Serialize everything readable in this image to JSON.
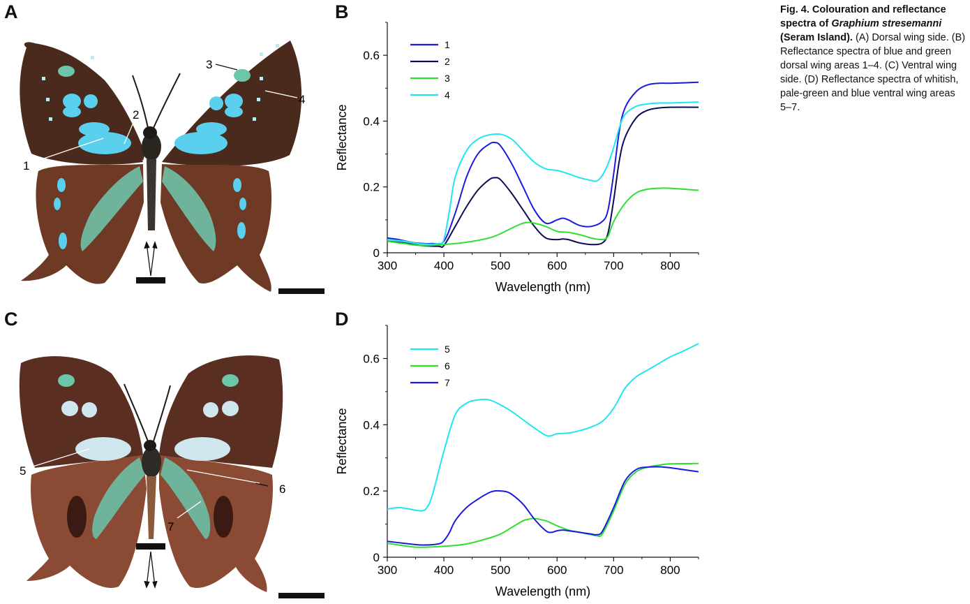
{
  "panels": {
    "A": "A",
    "B": "B",
    "C": "C",
    "D": "D"
  },
  "caption": {
    "bold_lead": "Fig. 4. Colouration and reflectance spectra of ",
    "species": "Graphium stresemanni",
    "bold_tail": " (Seram Island).",
    "text": " (A) Dorsal wing side. (B) Reflectance spectra of blue and green dorsal wing areas 1–4. (C) Ventral wing side. (D) Reflectance spectra of whitish, pale-green and blue ventral wing areas 5–7."
  },
  "photo_labels": {
    "A": [
      "1",
      "2",
      "3",
      "4"
    ],
    "C": [
      "5",
      "6",
      "7"
    ]
  },
  "colors": {
    "s1": "#1a1adf",
    "s2": "#0b0b57",
    "s3": "#2ee02e",
    "s4": "#1fe6f0",
    "s5": "#1fe6f0",
    "s6": "#2ee02e",
    "s7": "#1a1adf",
    "wing_brown": "#4a2a1c",
    "wing_tail": "#8a4a33",
    "wing_blue": "#5ad0ee",
    "wing_green": "#6fb49a",
    "wing_white": "#cfe6ee"
  },
  "chart_data": [
    {
      "type": "line",
      "panel": "B",
      "xlabel": "Wavelength (nm)",
      "ylabel": "Reflectance",
      "xlim": [
        300,
        850
      ],
      "ylim": [
        0,
        0.7
      ],
      "xticks": [
        300,
        400,
        500,
        600,
        700,
        800
      ],
      "yticks": [
        0,
        0.2,
        0.4,
        0.6
      ],
      "ytick_labels": [
        "0",
        "0.2",
        "0.4",
        "0.6"
      ],
      "legend_position": "top-left",
      "series": [
        {
          "name": "1",
          "color": "#1a1adf",
          "x": [
            300,
            320,
            350,
            380,
            400,
            420,
            440,
            460,
            480,
            490,
            500,
            520,
            540,
            560,
            580,
            600,
            610,
            620,
            640,
            660,
            680,
            690,
            700,
            710,
            720,
            740,
            760,
            780,
            800,
            850
          ],
          "y": [
            0.045,
            0.04,
            0.03,
            0.028,
            0.035,
            0.12,
            0.23,
            0.3,
            0.33,
            0.335,
            0.325,
            0.27,
            0.2,
            0.13,
            0.09,
            0.1,
            0.105,
            0.1,
            0.083,
            0.08,
            0.095,
            0.13,
            0.24,
            0.37,
            0.44,
            0.49,
            0.51,
            0.515,
            0.515,
            0.518
          ]
        },
        {
          "name": "2",
          "color": "#0b0b57",
          "x": [
            300,
            330,
            360,
            390,
            400,
            420,
            440,
            460,
            480,
            490,
            500,
            520,
            540,
            560,
            580,
            600,
            610,
            620,
            640,
            660,
            680,
            690,
            700,
            710,
            720,
            740,
            760,
            780,
            800,
            850
          ],
          "y": [
            0.035,
            0.03,
            0.022,
            0.02,
            0.022,
            0.08,
            0.14,
            0.19,
            0.222,
            0.228,
            0.222,
            0.18,
            0.13,
            0.08,
            0.045,
            0.04,
            0.042,
            0.04,
            0.03,
            0.025,
            0.03,
            0.06,
            0.16,
            0.28,
            0.35,
            0.41,
            0.433,
            0.44,
            0.442,
            0.442
          ]
        },
        {
          "name": "3",
          "color": "#2ee02e",
          "x": [
            300,
            330,
            360,
            400,
            440,
            480,
            500,
            520,
            540,
            550,
            560,
            580,
            600,
            620,
            640,
            660,
            680,
            690,
            700,
            720,
            740,
            760,
            780,
            800,
            850
          ],
          "y": [
            0.035,
            0.028,
            0.022,
            0.025,
            0.032,
            0.045,
            0.058,
            0.075,
            0.09,
            0.092,
            0.09,
            0.08,
            0.065,
            0.062,
            0.055,
            0.045,
            0.04,
            0.05,
            0.095,
            0.15,
            0.182,
            0.193,
            0.196,
            0.196,
            0.19
          ]
        },
        {
          "name": "4",
          "color": "#1fe6f0",
          "x": [
            300,
            330,
            360,
            390,
            400,
            410,
            420,
            440,
            460,
            480,
            500,
            520,
            540,
            560,
            580,
            600,
            620,
            640,
            660,
            670,
            680,
            690,
            700,
            710,
            720,
            740,
            760,
            780,
            800,
            850
          ],
          "y": [
            0.04,
            0.035,
            0.027,
            0.028,
            0.04,
            0.13,
            0.23,
            0.31,
            0.345,
            0.358,
            0.36,
            0.345,
            0.31,
            0.275,
            0.255,
            0.25,
            0.24,
            0.228,
            0.22,
            0.218,
            0.235,
            0.27,
            0.32,
            0.38,
            0.42,
            0.445,
            0.452,
            0.455,
            0.455,
            0.458
          ]
        }
      ]
    },
    {
      "type": "line",
      "panel": "D",
      "xlabel": "Wavelength (nm)",
      "ylabel": "Reflectance",
      "xlim": [
        300,
        850
      ],
      "ylim": [
        0,
        0.7
      ],
      "xticks": [
        300,
        400,
        500,
        600,
        700,
        800
      ],
      "yticks": [
        0,
        0.2,
        0.4,
        0.6
      ],
      "ytick_labels": [
        "0",
        "0.2",
        "0.4",
        "0.6"
      ],
      "legend_position": "top-left",
      "series": [
        {
          "name": "5",
          "color": "#1fe6f0",
          "x": [
            300,
            320,
            340,
            360,
            370,
            380,
            400,
            420,
            440,
            460,
            480,
            500,
            520,
            540,
            560,
            580,
            590,
            600,
            620,
            640,
            660,
            680,
            700,
            720,
            740,
            760,
            780,
            800,
            820,
            850
          ],
          "y": [
            0.145,
            0.15,
            0.145,
            0.14,
            0.15,
            0.19,
            0.32,
            0.43,
            0.465,
            0.475,
            0.475,
            0.46,
            0.44,
            0.415,
            0.39,
            0.368,
            0.367,
            0.373,
            0.375,
            0.382,
            0.393,
            0.41,
            0.45,
            0.51,
            0.545,
            0.565,
            0.585,
            0.605,
            0.62,
            0.645
          ]
        },
        {
          "name": "6",
          "color": "#2ee02e",
          "x": [
            300,
            340,
            360,
            400,
            440,
            480,
            500,
            520,
            540,
            550,
            560,
            580,
            600,
            620,
            640,
            660,
            670,
            680,
            700,
            720,
            740,
            760,
            780,
            800,
            850
          ],
          "y": [
            0.042,
            0.032,
            0.03,
            0.033,
            0.04,
            0.058,
            0.07,
            0.09,
            0.11,
            0.115,
            0.117,
            0.11,
            0.095,
            0.082,
            0.075,
            0.068,
            0.065,
            0.07,
            0.14,
            0.22,
            0.258,
            0.272,
            0.278,
            0.282,
            0.283
          ]
        },
        {
          "name": "7",
          "color": "#1a1adf",
          "x": [
            300,
            330,
            360,
            390,
            400,
            410,
            420,
            440,
            460,
            480,
            490,
            500,
            510,
            520,
            540,
            560,
            580,
            590,
            600,
            610,
            620,
            640,
            660,
            670,
            680,
            700,
            720,
            740,
            760,
            780,
            800,
            850
          ],
          "y": [
            0.048,
            0.042,
            0.037,
            0.04,
            0.05,
            0.075,
            0.11,
            0.15,
            0.175,
            0.195,
            0.2,
            0.2,
            0.198,
            0.19,
            0.16,
            0.115,
            0.08,
            0.075,
            0.08,
            0.082,
            0.08,
            0.075,
            0.07,
            0.068,
            0.078,
            0.15,
            0.23,
            0.265,
            0.272,
            0.273,
            0.27,
            0.258
          ]
        }
      ]
    }
  ]
}
